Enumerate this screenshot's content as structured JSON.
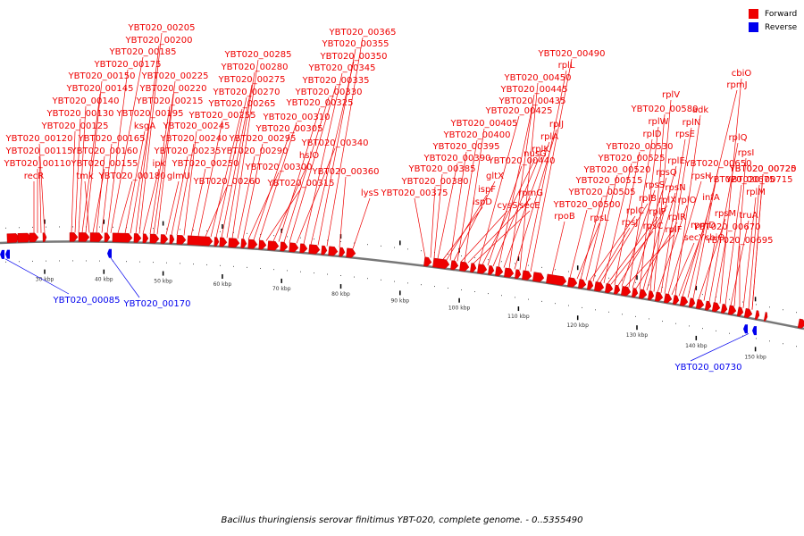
{
  "legend": {
    "forward_label": "Forward",
    "reverse_label": "Reverse",
    "forward_color": "#ee0000",
    "reverse_color": "#0000ee"
  },
  "caption": "Bacillus thuringiensis serovar finitimus YBT-020, complete genome. - 0..5355490",
  "axis_ticks": [
    "30 kbp",
    "40 kbp",
    "50 kbp",
    "60 kbp",
    "70 kbp",
    "80 kbp",
    "90 kbp",
    "100 kbp",
    "110 kbp",
    "120 kbp",
    "130 kbp",
    "140 kbp",
    "150 kbp"
  ],
  "forward_labels": [
    "recR",
    "YBT020_00110",
    "YBT020_00115",
    "YBT020_00120",
    "YBT020_00125",
    "YBT020_00130",
    "YBT020_00140",
    "YBT020_00145",
    "YBT020_00150",
    "tmk",
    "YBT020_00155",
    "YBT020_00160",
    "YBT020_00165",
    "YBT020_00175",
    "YBT020_00185",
    "YBT020_00180",
    "ksgA",
    "YBT020_00195",
    "YBT020_00200",
    "YBT020_00205",
    "ipk",
    "YBT020_00215",
    "YBT020_00220",
    "YBT020_00225",
    "glmU",
    "YBT020_00235",
    "YBT020_00240",
    "YBT020_00245",
    "YBT020_00250",
    "YBT020_00255",
    "YBT020_00260",
    "YBT020_00265",
    "YBT020_00270",
    "YBT020_00275",
    "YBT020_00280",
    "YBT020_00285",
    "YBT020_00290",
    "YBT020_00295",
    "YBT020_00300",
    "YBT020_00305",
    "YBT020_00310",
    "YBT020_00315",
    "hslO",
    "YBT020_00325",
    "YBT020_00330",
    "YBT020_00335",
    "YBT020_00340",
    "YBT020_00345",
    "YBT020_00350",
    "YBT020_00355",
    "YBT020_00365",
    "YBT020_00360",
    "lysS",
    "YBT020_00375",
    "YBT020_00380",
    "YBT020_00385",
    "YBT020_00390",
    "ispD",
    "ispF",
    "YBT020_00395",
    "gltX",
    "YBT020_00400",
    "cysS",
    "YBT020_00405",
    "rpmG",
    "secE",
    "YBT020_00425",
    "nusG",
    "YBT020_00440",
    "rplK",
    "YBT020_00435",
    "rplA",
    "YBT020_00445",
    "rplJ",
    "YBT020_00450",
    "rplL",
    "YBT020_00490",
    "rpoB",
    "YBT020_00500",
    "rpsL",
    "YBT020_00505",
    "YBT020_00515",
    "rplC",
    "YBT020_00520",
    "rpsJ",
    "rplB",
    "YBT020_00525",
    "rplP",
    "rpsC",
    "YBT020_00530",
    "rplX",
    "rpsS",
    "rplF",
    "rplD",
    "rpsQ",
    "rplR",
    "rplW",
    "rplE",
    "rpsN",
    "YBT020_00580",
    "rplV",
    "rplO",
    "rpsE",
    "rplN",
    "rpsH",
    "secY",
    "adk",
    "rpmD",
    "infA",
    "rpmJ",
    "YBT020_00650",
    "rpsM",
    "cbiO",
    "rplQ",
    "YBT020_00670",
    "cbiO",
    "YBT020_00675",
    "truA",
    "rpsI",
    "YBT020_00695",
    "rplM",
    "YBT020_00715",
    "YBT020_00720",
    "YBT020_00725"
  ],
  "reverse_labels": [
    "YBT020_00085",
    "YBT020_00170",
    "YBT020_00730"
  ]
}
